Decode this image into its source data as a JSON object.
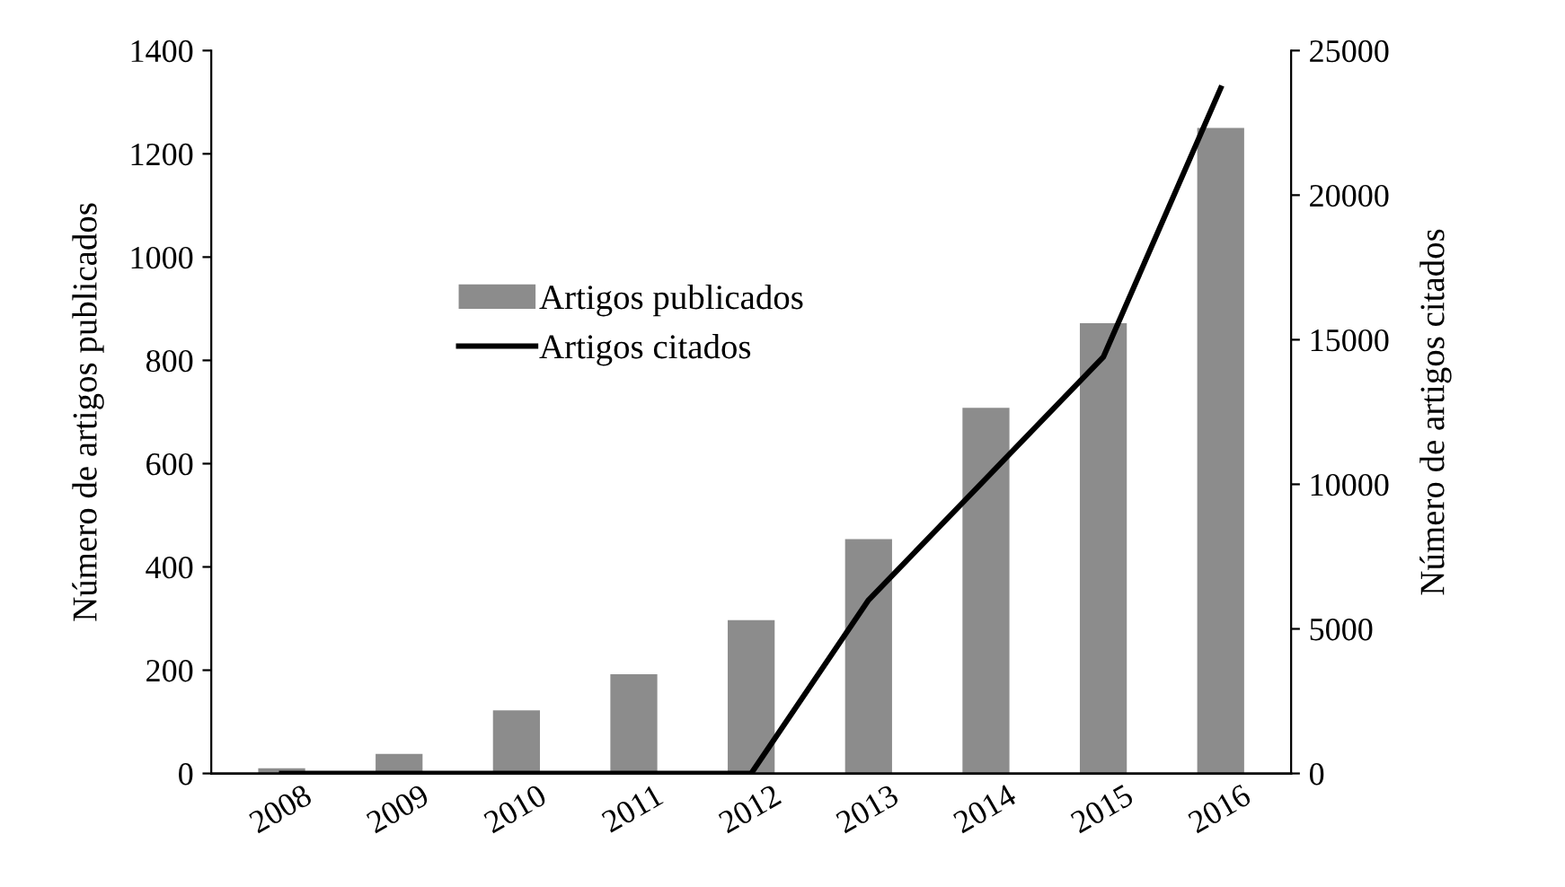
{
  "chart_data": {
    "type": "bar",
    "categories": [
      "2008",
      "2009",
      "2010",
      "2011",
      "2012",
      "2013",
      "2014",
      "2015",
      "2016"
    ],
    "series": [
      {
        "name": "Artigos publicados",
        "color": "#8c8c8c",
        "values": [
          10,
          38,
          122,
          192,
          297,
          454,
          708,
          872,
          1250
        ]
      },
      {
        "name": "Artigos citados",
        "type": "line",
        "axis": "y2",
        "color": "#000000",
        "values": [
          0,
          0,
          0,
          0,
          0,
          6000,
          10200,
          14400,
          23700
        ]
      }
    ],
    "ylabel": "Número de artigos publicados",
    "y2label": "Número de artigos citados",
    "ylim": [
      0,
      1400
    ],
    "yticks": [
      0,
      200,
      400,
      600,
      800,
      1000,
      1200,
      1400
    ],
    "y2lim": [
      0,
      25000
    ],
    "y2ticks": [
      0,
      5000,
      10000,
      15000,
      20000,
      25000
    ],
    "grid": false,
    "legend": "top left",
    "marker": "none",
    "line_style": "solid"
  }
}
